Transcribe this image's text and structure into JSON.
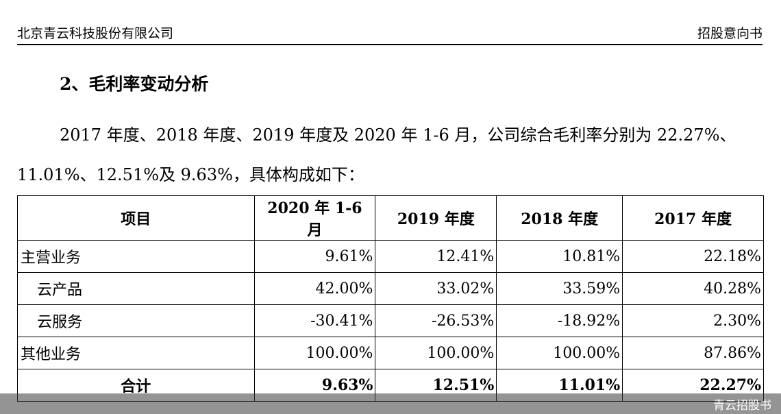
{
  "header": {
    "company": "北京青云科技股份有限公司",
    "doc_type": "招股意向书"
  },
  "section": {
    "title": "2、毛利率变动分析",
    "paragraph_line1": "2017 年度、2018 年度、2019 年度及 2020 年 1-6 月，公司综合毛利率分别为 22.27%、",
    "paragraph_line2": "11.01%、12.51%及 9.63%，具体构成如下："
  },
  "table": {
    "headers": [
      "项目",
      "2020 年 1-6 月",
      "2019 年度",
      "2018 年度",
      "2017 年度"
    ],
    "rows": [
      {
        "label": "主营业务",
        "values": [
          "9.61%",
          "12.41%",
          "10.81%",
          "22.18%"
        ]
      },
      {
        "label": "云产品",
        "values": [
          "42.00%",
          "33.02%",
          "33.59%",
          "40.28%"
        ]
      },
      {
        "label": "云服务",
        "values": [
          "-30.41%",
          "-26.53%",
          "-18.92%",
          "2.30%"
        ]
      },
      {
        "label": "其他业务",
        "values": [
          "100.00%",
          "100.00%",
          "100.00%",
          "87.86%"
        ]
      }
    ],
    "total": {
      "label": "合计",
      "values": [
        "9.63%",
        "12.51%",
        "11.01%",
        "22.27%"
      ]
    }
  },
  "watermark": "青云招股书"
}
